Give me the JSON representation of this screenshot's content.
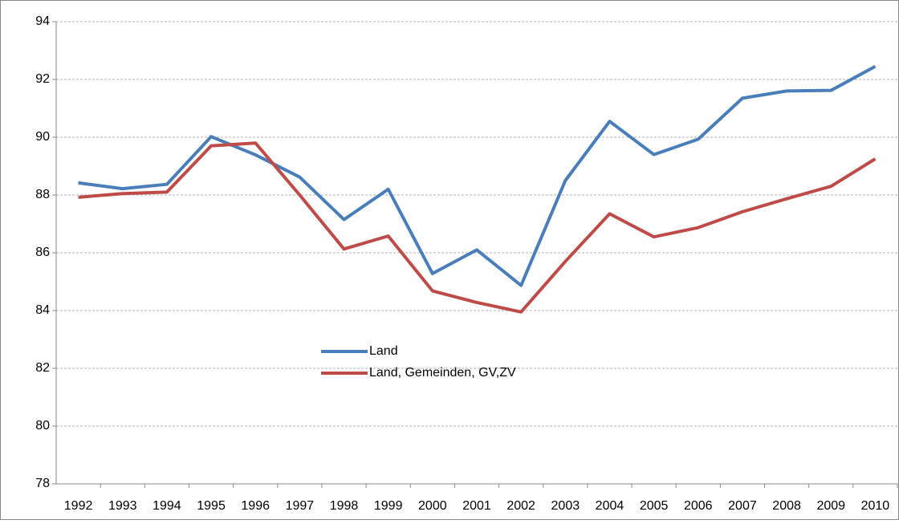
{
  "chart_data": {
    "type": "line",
    "categories": [
      "1992",
      "1993",
      "1994",
      "1995",
      "1996",
      "1997",
      "1998",
      "1999",
      "2000",
      "2001",
      "2002",
      "2003",
      "2004",
      "2005",
      "2006",
      "2007",
      "2008",
      "2009",
      "2010"
    ],
    "series": [
      {
        "name": "Land",
        "color": "#4a7ebb",
        "values": [
          88.42,
          88.22,
          88.37,
          90.02,
          89.39,
          88.62,
          87.15,
          88.2,
          85.28,
          86.1,
          84.87,
          88.5,
          90.55,
          89.4,
          89.93,
          91.35,
          91.6,
          91.62,
          92.45
        ]
      },
      {
        "name": "Land, Gemeinden, GV,ZV",
        "color": "#be4b48",
        "values": [
          87.92,
          88.05,
          88.1,
          89.7,
          89.8,
          88.0,
          86.13,
          86.58,
          84.68,
          84.28,
          83.95,
          85.7,
          87.35,
          86.55,
          86.87,
          87.42,
          87.87,
          88.3,
          89.25
        ]
      }
    ],
    "ylim": [
      78,
      94
    ],
    "yticks": [
      78,
      80,
      82,
      84,
      86,
      88,
      90,
      92,
      94
    ],
    "grid": true
  }
}
